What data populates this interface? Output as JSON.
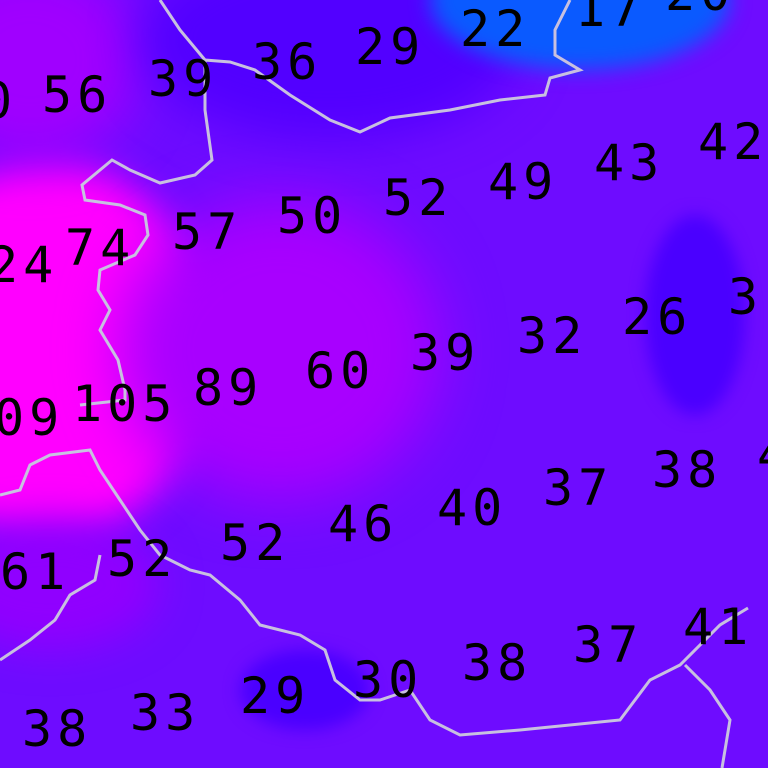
{
  "map": {
    "colors": {
      "base": "#6e0cff",
      "high": "#ff00ff",
      "mid_high": "#b000ff",
      "low": "#4a00ff",
      "lowest": "#0a5aff",
      "border": "#c8c0e0",
      "label": "#000000"
    },
    "labels": [
      "0",
      "56",
      "39",
      "36",
      "29",
      "22",
      "17",
      "20",
      "42",
      "43",
      "49",
      "52",
      "50",
      "57",
      "74",
      "24",
      "26",
      "3",
      "32",
      "39",
      "60",
      "89",
      "105",
      "09",
      "38",
      "4",
      "37",
      "40",
      "46",
      "52",
      "52",
      "61",
      "41",
      "37",
      "38",
      "30",
      "29",
      "33",
      "38"
    ]
  }
}
